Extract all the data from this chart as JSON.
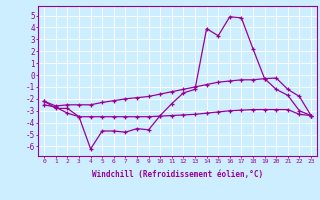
{
  "x": [
    0,
    1,
    2,
    3,
    4,
    5,
    6,
    7,
    8,
    9,
    10,
    11,
    12,
    13,
    14,
    15,
    16,
    17,
    18,
    19,
    20,
    21,
    22,
    23
  ],
  "line1": [
    -2.2,
    -2.8,
    -2.8,
    -3.5,
    -6.2,
    -4.7,
    -4.7,
    -4.8,
    -4.5,
    -4.6,
    -3.4,
    -2.4,
    -1.5,
    -1.2,
    3.9,
    3.3,
    4.9,
    4.8,
    2.2,
    -0.3,
    -1.2,
    -1.7,
    -3.0,
    -3.4
  ],
  "line2": [
    -2.5,
    -2.7,
    -3.2,
    -3.5,
    -3.5,
    -3.5,
    -3.5,
    -3.5,
    -3.5,
    -3.5,
    -3.45,
    -3.4,
    -3.35,
    -3.3,
    -3.2,
    -3.1,
    -3.0,
    -2.95,
    -2.9,
    -2.9,
    -2.9,
    -2.9,
    -3.3,
    -3.4
  ],
  "line3": [
    -2.2,
    -2.6,
    -2.5,
    -2.5,
    -2.5,
    -2.3,
    -2.15,
    -2.0,
    -1.9,
    -1.8,
    -1.6,
    -1.4,
    -1.2,
    -1.0,
    -0.8,
    -0.6,
    -0.5,
    -0.4,
    -0.4,
    -0.3,
    -0.25,
    -1.2,
    -1.8,
    -3.4
  ],
  "line_color": "#990099",
  "bg_color": "#cceeff",
  "grid_color": "#aaddcc",
  "ylabel_vals": [
    -6,
    -5,
    -4,
    -3,
    -2,
    -1,
    0,
    1,
    2,
    3,
    4,
    5
  ],
  "ylim": [
    -6.8,
    5.8
  ],
  "xlim": [
    -0.5,
    23.5
  ],
  "xlabel": "Windchill (Refroidissement éolien,°C)"
}
